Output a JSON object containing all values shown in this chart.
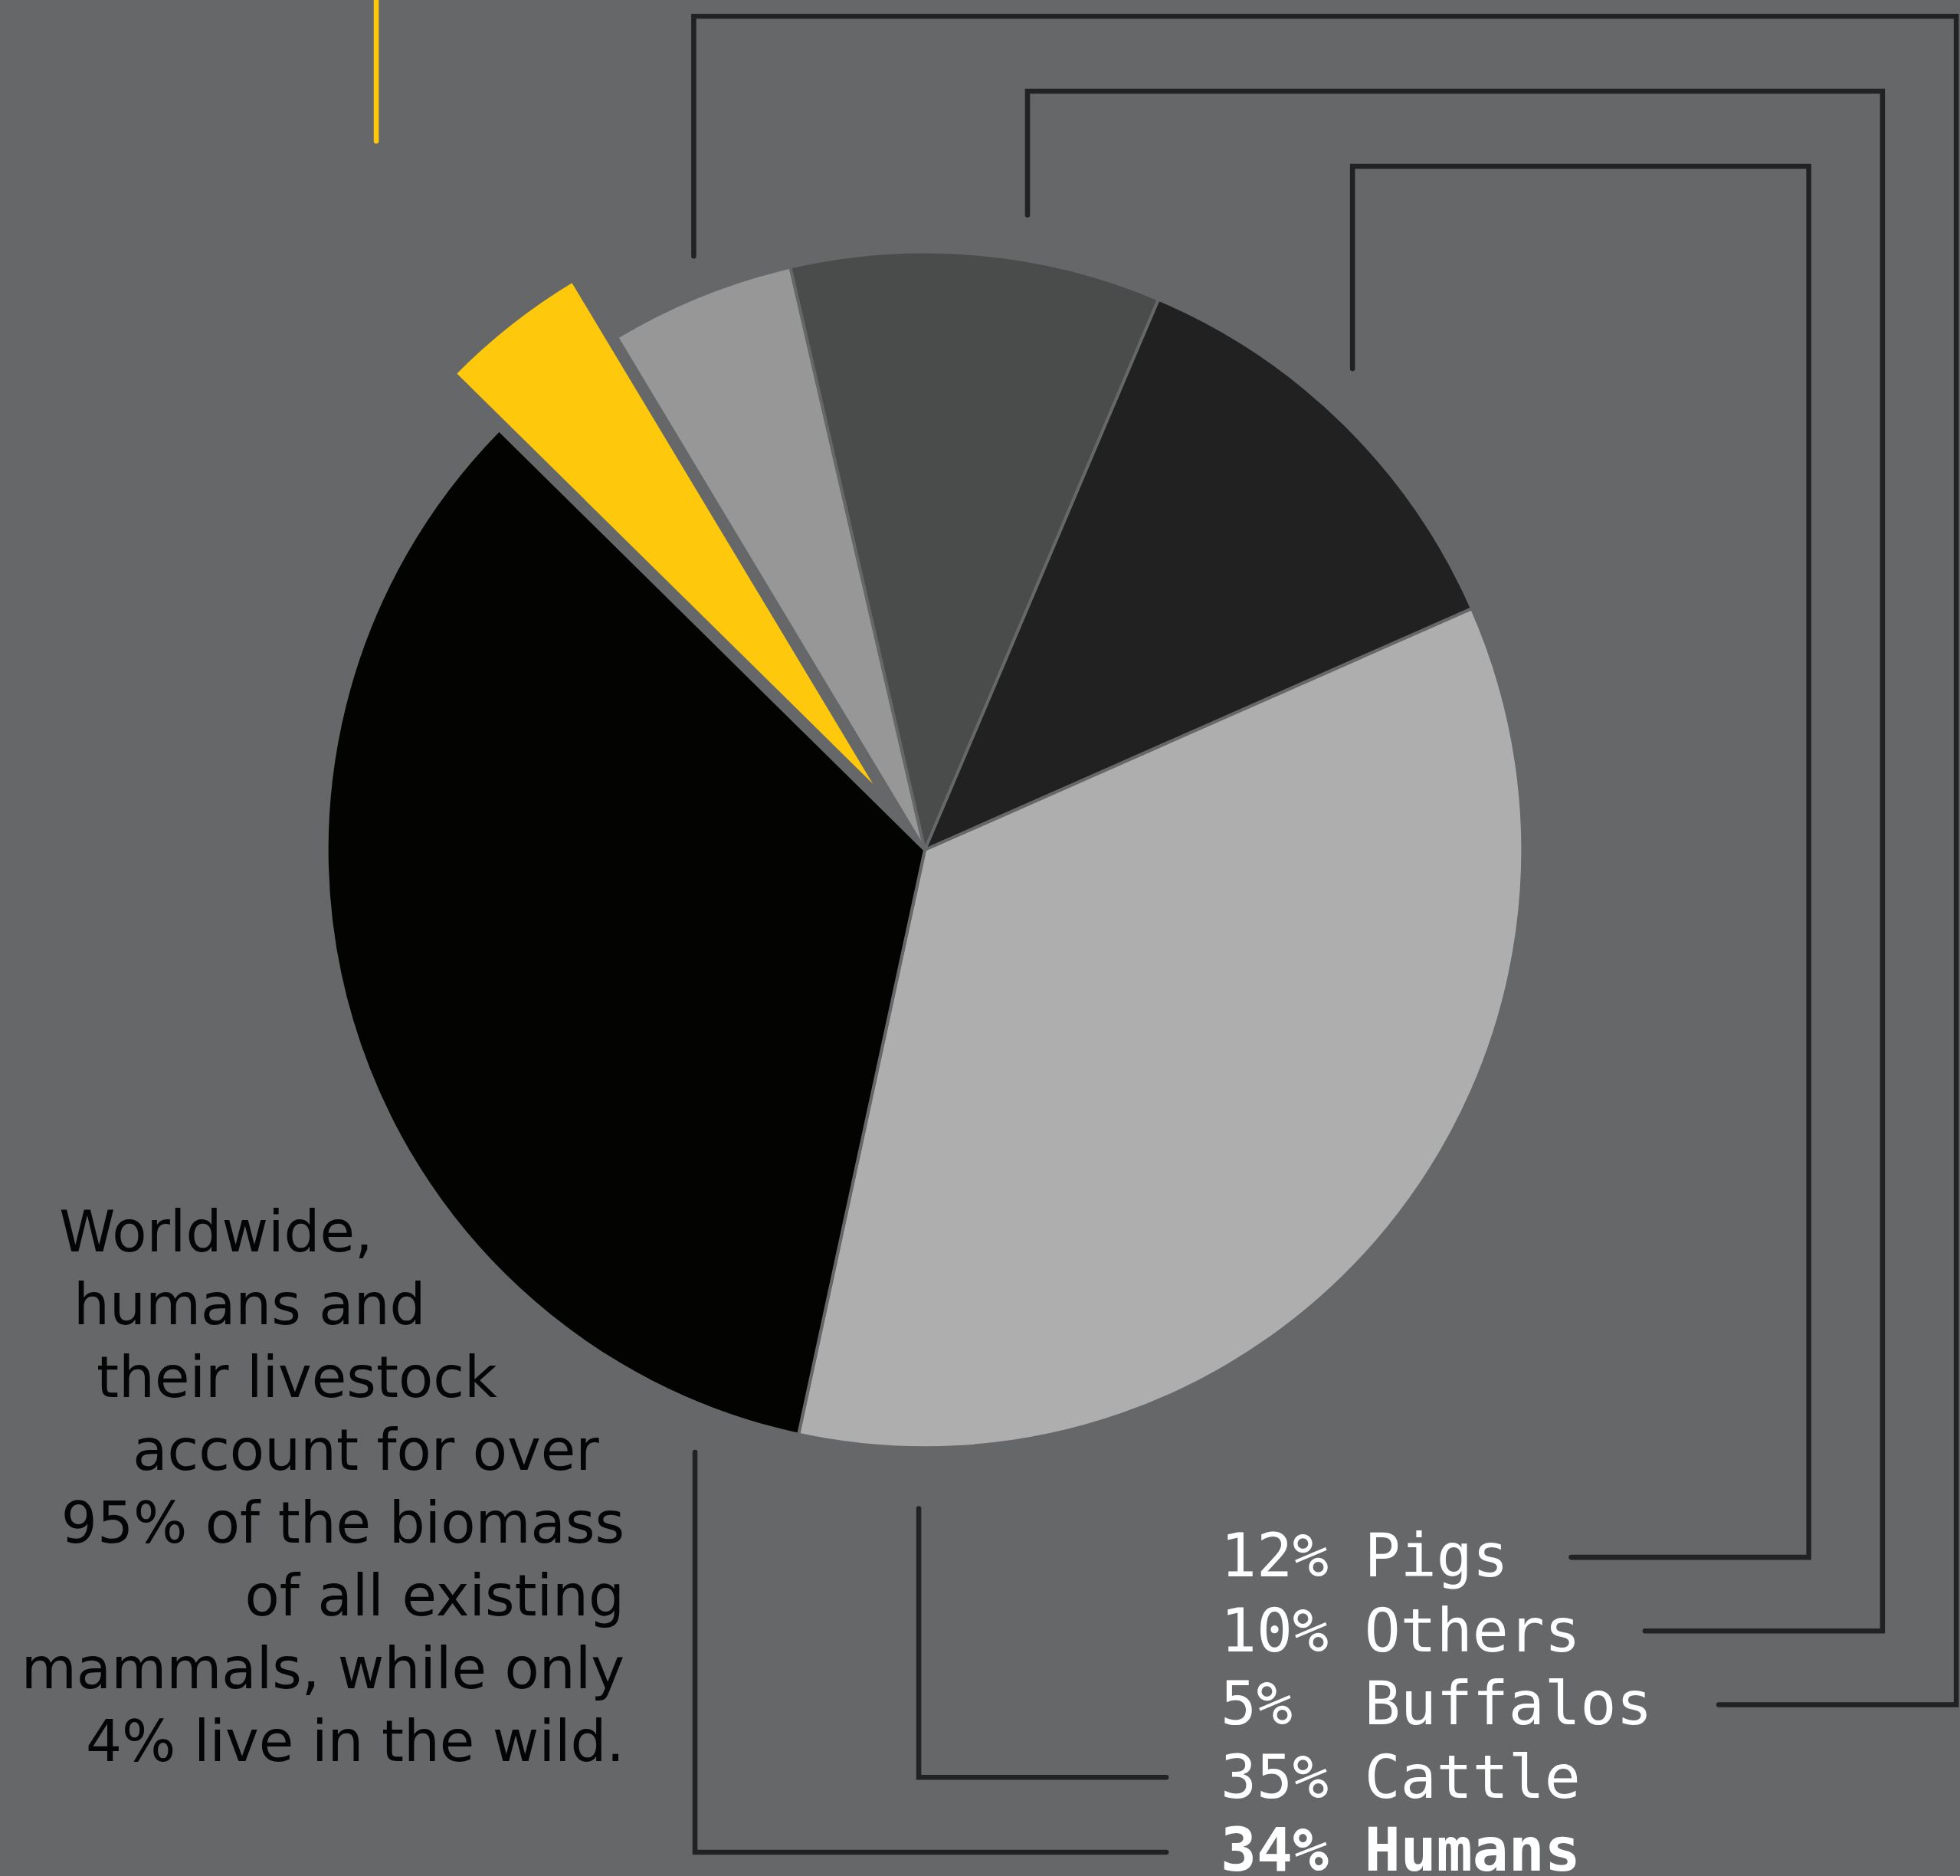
{
  "chart_data": {
    "type": "pie",
    "categories": [
      "Buffalos",
      "Others",
      "Pigs",
      "Cattle",
      "Humans",
      null
    ],
    "values": [
      5,
      10,
      12,
      35,
      34,
      4
    ],
    "value_labels": [
      "5%",
      "10%",
      "12%",
      "35%",
      "34%",
      null
    ],
    "colors": [
      "#979797",
      "#4a4b4b",
      "#212121",
      "#aeaeae",
      "#030302",
      "#fec90c"
    ],
    "annotations": [
      "Worldwide, humans and their livestock account for over 95% of the biomass of all existing mammals, while only 4% live in the wild."
    ],
    "legend": false
  }
}
